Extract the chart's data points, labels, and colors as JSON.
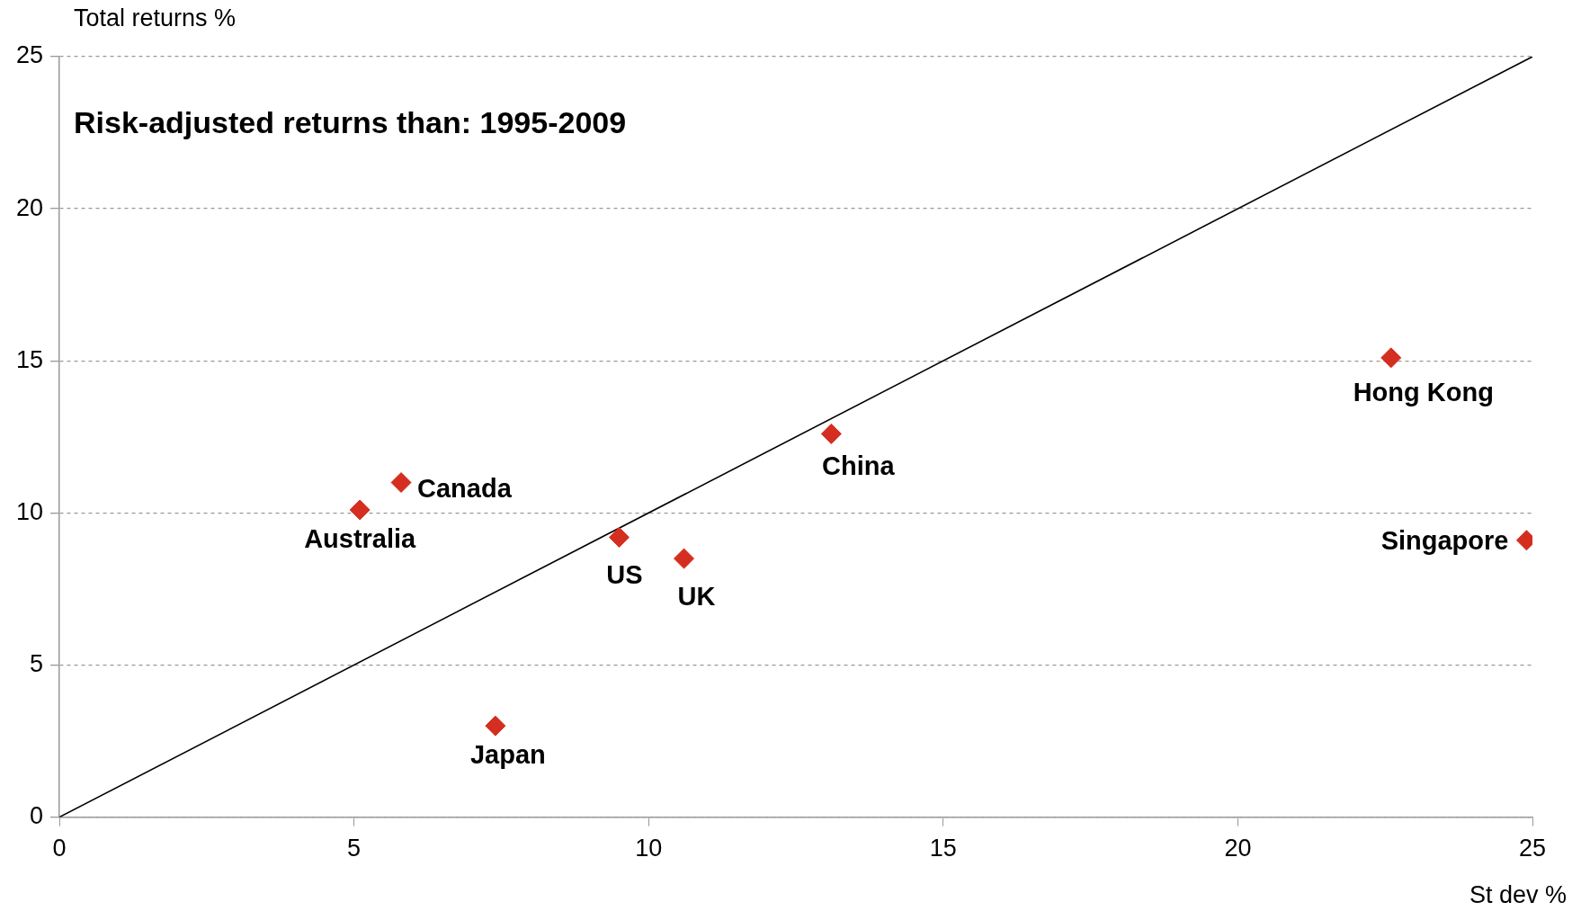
{
  "chart_data": {
    "type": "scatter",
    "title": "Risk-adjusted returns than: 1995-2009",
    "xlabel": "St dev %",
    "ylabel": "Total returns %",
    "series": [
      {
        "color": "#d42e20",
        "marker": "diamond",
        "x": [
          5.1,
          5.8,
          7.4,
          9.5,
          10.6,
          13.1,
          22.6,
          24.9
        ],
        "values": [
          10.1,
          11.0,
          3.0,
          9.2,
          8.5,
          12.6,
          15.1,
          9.1
        ]
      },
      {
        "type": "line",
        "marker": "none",
        "color": "#000000",
        "x": [
          0,
          25
        ],
        "values": [
          0,
          25
        ]
      }
    ],
    "annotations": [
      {
        "text": "Australia",
        "x": 5.1,
        "y": 10.1
      },
      {
        "text": "Canada",
        "x": 5.8,
        "y": 11.0
      },
      {
        "text": "Japan",
        "x": 7.4,
        "y": 3.0
      },
      {
        "text": "US",
        "x": 9.5,
        "y": 9.2
      },
      {
        "text": "UK",
        "x": 10.6,
        "y": 8.5
      },
      {
        "text": "China",
        "x": 13.1,
        "y": 12.6
      },
      {
        "text": "Hong Kong",
        "x": 22.6,
        "y": 15.1
      },
      {
        "text": "Singapore",
        "x": 24.9,
        "y": 9.1
      }
    ],
    "xlim": [
      0,
      25
    ],
    "xticks": [
      0,
      5,
      10,
      15,
      20,
      25
    ],
    "ylim": [
      0,
      25
    ],
    "yticks": [
      0,
      5,
      10,
      15,
      20,
      25
    ],
    "grid": "y",
    "legend": false
  }
}
